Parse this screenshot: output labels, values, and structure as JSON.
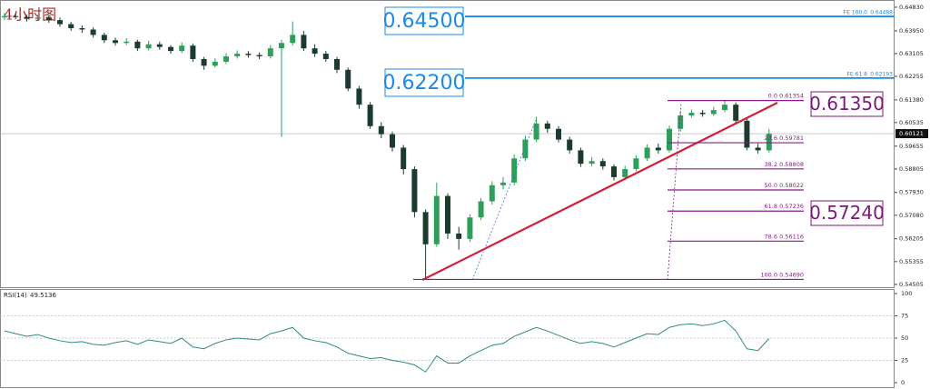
{
  "chart_data": [
    {
      "type": "candlestick",
      "title": "4小时图",
      "open": [
        0.6445,
        0.645,
        0.6447,
        0.644,
        0.6445,
        0.6435,
        0.642,
        0.6405,
        0.64,
        0.638,
        0.636,
        0.635,
        0.6355,
        0.633,
        0.6345,
        0.6335,
        0.632,
        0.634,
        0.629,
        0.6265,
        0.628,
        0.63,
        0.631,
        0.6305,
        0.63,
        0.633,
        0.635,
        0.638,
        0.633,
        0.631,
        0.629,
        0.625,
        0.618,
        0.612,
        0.604,
        0.601,
        0.596,
        0.588,
        0.572,
        0.56,
        0.578,
        0.564,
        0.562,
        0.57,
        0.576,
        0.582,
        0.583,
        0.592,
        0.599,
        0.605,
        0.603,
        0.599,
        0.595,
        0.59,
        0.591,
        0.589,
        0.585,
        0.588,
        0.592,
        0.596,
        0.595,
        0.603,
        0.608,
        0.609,
        0.6085,
        0.61,
        0.612,
        0.606,
        0.596,
        0.595
      ],
      "high": [
        0.6462,
        0.646,
        0.6455,
        0.6455,
        0.6452,
        0.6445,
        0.6428,
        0.6415,
        0.6408,
        0.6388,
        0.637,
        0.6368,
        0.6362,
        0.6358,
        0.6355,
        0.6342,
        0.6352,
        0.6348,
        0.6298,
        0.6292,
        0.6312,
        0.6322,
        0.632,
        0.6315,
        0.6342,
        0.6362,
        0.643,
        0.6395,
        0.6345,
        0.632,
        0.6298,
        0.6258,
        0.619,
        0.613,
        0.6055,
        0.602,
        0.597,
        0.589,
        0.573,
        0.583,
        0.579,
        0.5665,
        0.5712,
        0.5772,
        0.5835,
        0.585,
        0.5935,
        0.6005,
        0.6075,
        0.606,
        0.604,
        0.6,
        0.596,
        0.5925,
        0.592,
        0.5898,
        0.5892,
        0.5932,
        0.5972,
        0.5975,
        0.6042,
        0.6095,
        0.6102,
        0.61,
        0.6112,
        0.6135,
        0.6128,
        0.6068,
        0.5975,
        0.603
      ],
      "low": [
        0.6435,
        0.6438,
        0.643,
        0.6432,
        0.6425,
        0.641,
        0.6395,
        0.6388,
        0.637,
        0.635,
        0.634,
        0.6342,
        0.632,
        0.6322,
        0.6325,
        0.631,
        0.6312,
        0.628,
        0.625,
        0.6258,
        0.6272,
        0.6292,
        0.6295,
        0.629,
        0.6292,
        0.6,
        0.634,
        0.632,
        0.6298,
        0.628,
        0.6238,
        0.617,
        0.6105,
        0.603,
        0.5995,
        0.5945,
        0.586,
        0.57,
        0.5469,
        0.559,
        0.562,
        0.558,
        0.5608,
        0.569,
        0.5748,
        0.5805,
        0.582,
        0.591,
        0.598,
        0.6015,
        0.598,
        0.5938,
        0.5888,
        0.589,
        0.5878,
        0.5838,
        0.5842,
        0.5872,
        0.591,
        0.5938,
        0.5942,
        0.602,
        0.6072,
        0.6075,
        0.6078,
        0.6092,
        0.605,
        0.595,
        0.5938,
        0.5942
      ],
      "close": [
        0.645,
        0.6447,
        0.644,
        0.6445,
        0.6435,
        0.642,
        0.6405,
        0.64,
        0.638,
        0.636,
        0.635,
        0.6355,
        0.633,
        0.6345,
        0.6335,
        0.632,
        0.634,
        0.629,
        0.6265,
        0.628,
        0.63,
        0.631,
        0.6305,
        0.63,
        0.633,
        0.635,
        0.638,
        0.633,
        0.631,
        0.629,
        0.625,
        0.618,
        0.612,
        0.604,
        0.601,
        0.596,
        0.588,
        0.572,
        0.56,
        0.578,
        0.564,
        0.562,
        0.57,
        0.576,
        0.582,
        0.583,
        0.592,
        0.599,
        0.605,
        0.603,
        0.599,
        0.595,
        0.59,
        0.591,
        0.589,
        0.585,
        0.588,
        0.592,
        0.596,
        0.595,
        0.603,
        0.608,
        0.609,
        0.6085,
        0.61,
        0.612,
        0.606,
        0.596,
        0.595,
        0.6012
      ],
      "up_color": "#2e9e5b",
      "down_color": "#1d3b2c",
      "ylim": [
        0.544,
        0.651
      ],
      "yticks": [
        {
          "value": 0.6483,
          "label": "0.64830"
        },
        {
          "value": 0.6395,
          "label": "0.63950"
        },
        0.63105,
        0.62255,
        {
          "value": 0.6138,
          "label": "0.61380"
        },
        0.60535,
        0.59655,
        0.58805,
        {
          "value": 0.5793,
          "label": "0.57930"
        },
        {
          "value": 0.5708,
          "label": "0.57080"
        },
        0.56205,
        0.55355,
        0.54505
      ],
      "last_price": 0.60121,
      "fibonacci": {
        "color": "#8b1a8b",
        "levels": [
          {
            "ratio": "0.0",
            "price": 0.61354
          },
          {
            "ratio": "23.6",
            "price": 0.59781
          },
          {
            "ratio": "38.2",
            "price": 0.58808
          },
          {
            "ratio": "50.0",
            "price": 0.58022
          },
          {
            "ratio": "61.8",
            "price": 0.57236
          },
          {
            "ratio": "78.6",
            "price": 0.56116
          },
          {
            "ratio": "100.0",
            "price": {
              "value": 0.5469,
              "label": "0.54690"
            }
          }
        ]
      },
      "expansion": {
        "color": "#1e88e5",
        "levels": [
          {
            "ratio": "FE 100.0",
            "price": 0.64488
          },
          {
            "ratio": "FE 61.8",
            "price": 0.62193
          }
        ]
      },
      "annotations": [
        {
          "text": "0.64500",
          "color": "#1e88e5"
        },
        {
          "text": "0.62200",
          "color": "#1e88e5"
        },
        {
          "text": "0.61350",
          "color": "#7b1a7b"
        },
        {
          "text": "0.57240",
          "color": "#7b1a7b"
        }
      ]
    },
    {
      "type": "line",
      "name": "RSI(14)",
      "color": "#2e8b84",
      "values": [
        58,
        55,
        52,
        54,
        50,
        47,
        45,
        46,
        43,
        42,
        45,
        47,
        43,
        48,
        46,
        44,
        50,
        40,
        38,
        44,
        48,
        50,
        49,
        48,
        55,
        58,
        62,
        50,
        47,
        45,
        40,
        33,
        30,
        27,
        28,
        25,
        23,
        20,
        12,
        30,
        22,
        22,
        30,
        36,
        42,
        44,
        52,
        57,
        62,
        58,
        53,
        48,
        44,
        46,
        44,
        40,
        45,
        50,
        55,
        54,
        62,
        65,
        66,
        64,
        66,
        70,
        58,
        38,
        36,
        49.5136
      ],
      "ylim": [
        0,
        100
      ],
      "yticks": [
        100,
        75,
        50,
        25,
        0
      ]
    }
  ]
}
